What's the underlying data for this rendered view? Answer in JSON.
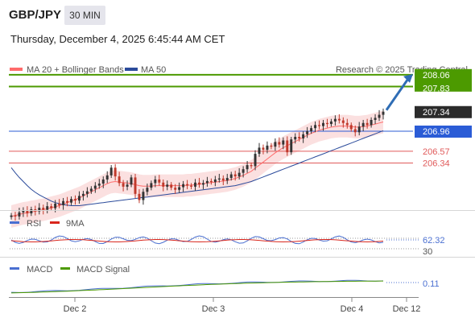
{
  "header": {
    "symbol": "GBP/JPY",
    "timeframe": "30 MIN",
    "timestamp": "Thursday, December 4, 2025 6:45:44 AM CET"
  },
  "legend": {
    "ma20_label": "MA 20 + Bollinger Bands",
    "ma50_label": "MA 50",
    "ma20_color": "#ff6b6b",
    "ma50_color": "#2b4b9b",
    "credit": "Research © 2025 Trading Central"
  },
  "colors": {
    "green_level": "#4c9a00",
    "blue_level": "#2b5cd6",
    "red_level": "#e05a5a",
    "current_badge": "#2b2b2b",
    "arrow": "#2f6db5",
    "bollinger_fill": "#fadada",
    "candle_up": "#333333",
    "candle_down": "#c0392b"
  },
  "chart_data": [
    {
      "type": "candlestick",
      "y_range": [
        205.1,
        208.3
      ],
      "levels": [
        {
          "value": 208.06,
          "label": "208.06",
          "style": "green"
        },
        {
          "value": 207.83,
          "label": "207.83",
          "style": "green"
        },
        {
          "value": 207.34,
          "label": "207.34",
          "style": "current"
        },
        {
          "value": 206.96,
          "label": "206.96",
          "style": "blue"
        },
        {
          "value": 206.57,
          "label": "206.57",
          "style": "red"
        },
        {
          "value": 206.34,
          "label": "206.34",
          "style": "red"
        }
      ],
      "x_ticks": [
        "Dec 2",
        "Dec 3",
        "Dec 4",
        "Dec 12"
      ],
      "close": [
        205.32,
        205.3,
        205.38,
        205.42,
        205.36,
        205.44,
        205.4,
        205.47,
        205.43,
        205.5,
        205.46,
        205.55,
        205.52,
        205.6,
        205.57,
        205.64,
        205.61,
        205.7,
        205.74,
        205.79,
        205.84,
        205.9,
        205.94,
        206.02,
        206.1,
        206.25,
        206.08,
        205.95,
        205.88,
        205.92,
        206.06,
        205.74,
        205.62,
        205.78,
        205.86,
        205.95,
        206.02,
        205.96,
        205.88,
        205.92,
        205.86,
        205.82,
        205.87,
        205.93,
        205.9,
        205.88,
        205.96,
        205.92,
        205.95,
        205.99,
        205.97,
        206.02,
        206.04,
        206.0,
        206.05,
        206.12,
        206.08,
        206.15,
        206.22,
        206.3,
        206.28,
        206.52,
        206.64,
        206.6,
        206.68,
        206.66,
        206.75,
        206.7,
        206.78,
        206.55,
        206.8,
        206.85,
        206.82,
        206.9,
        206.96,
        207.02,
        207.08,
        207.06,
        207.12,
        207.1,
        207.15,
        207.2,
        207.17,
        207.12,
        207.08,
        207.0,
        206.94,
        207.05,
        207.12,
        207.08,
        207.18,
        207.22,
        207.28,
        207.34
      ],
      "ma20": [
        205.3,
        205.32,
        205.34,
        205.36,
        205.37,
        205.39,
        205.4,
        205.42,
        205.43,
        205.45,
        205.47,
        205.49,
        205.51,
        205.54,
        205.57,
        205.6,
        205.63,
        205.66,
        205.7,
        205.74,
        205.78,
        205.82,
        205.86,
        205.9,
        205.94,
        205.97,
        205.98,
        205.97,
        205.96,
        205.95,
        205.94,
        205.92,
        205.9,
        205.89,
        205.89,
        205.89,
        205.9,
        205.9,
        205.9,
        205.9,
        205.9,
        205.9,
        205.9,
        205.9,
        205.91,
        205.91,
        205.92,
        205.93,
        205.94,
        205.95,
        205.96,
        205.97,
        205.98,
        205.99,
        206.0,
        206.02,
        206.04,
        206.07,
        206.1,
        206.14,
        206.18,
        206.24,
        206.3,
        206.36,
        206.42,
        206.48,
        206.54,
        206.59,
        206.64,
        206.68,
        206.72,
        206.76,
        206.8,
        206.84,
        206.88,
        206.92,
        206.95,
        206.98,
        207.0,
        207.02,
        207.04,
        207.05,
        207.06,
        207.06,
        207.06,
        207.05,
        207.04,
        207.04,
        207.05,
        207.06,
        207.08,
        207.1,
        207.12,
        207.14
      ],
      "ma50": [
        206.25,
        206.15,
        206.06,
        205.98,
        205.9,
        205.83,
        205.77,
        205.72,
        205.68,
        205.64,
        205.6,
        205.57,
        205.55,
        205.53,
        205.52,
        205.51,
        205.51,
        205.51,
        205.52,
        205.53,
        205.54,
        205.55,
        205.56,
        205.57,
        205.58,
        205.59,
        205.6,
        205.61,
        205.62,
        205.63,
        205.64,
        205.65,
        205.66,
        205.67,
        205.68,
        205.69,
        205.7,
        205.71,
        205.72,
        205.73,
        205.74,
        205.75,
        205.76,
        205.77,
        205.78,
        205.79,
        205.8,
        205.81,
        205.82,
        205.83,
        205.84,
        205.85,
        205.86,
        205.87,
        205.88,
        205.89,
        205.9,
        205.92,
        205.94,
        205.96,
        205.98,
        206.01,
        206.04,
        206.07,
        206.1,
        206.13,
        206.16,
        206.19,
        206.22,
        206.25,
        206.28,
        206.31,
        206.34,
        206.37,
        206.4,
        206.43,
        206.46,
        206.49,
        206.52,
        206.55,
        206.58,
        206.61,
        206.64,
        206.67,
        206.7,
        206.73,
        206.76,
        206.79,
        206.82,
        206.85,
        206.88,
        206.91,
        206.94,
        206.97
      ],
      "bollinger_width": 0.22
    },
    {
      "type": "line",
      "name": "RSI",
      "series": [
        {
          "name": "RSI",
          "color": "#4a6fd1"
        },
        {
          "name": "9MA",
          "color": "#d9261c"
        }
      ],
      "levels": [
        70,
        30
      ],
      "last_value": "62.32",
      "hidden_level_label": "30"
    },
    {
      "type": "line",
      "name": "MACD",
      "series": [
        {
          "name": "MACD",
          "color": "#4a6fd1"
        },
        {
          "name": "MACD Signal",
          "color": "#4c9a00"
        }
      ],
      "last_value": "0.11"
    }
  ]
}
